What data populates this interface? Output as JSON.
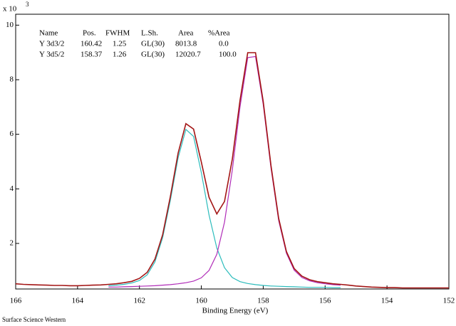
{
  "chart_data": {
    "type": "line",
    "x_label": "Binding Energy (eV)",
    "y_multiplier": "x 10",
    "y_multiplier_exp": "3",
    "footer": "Surface Science Western",
    "xlim": [
      166,
      152
    ],
    "ylim": [
      0.33,
      10.4
    ],
    "xticks": [
      166,
      164,
      162,
      160,
      158,
      156,
      154,
      152
    ],
    "yticks": [
      2,
      4,
      6,
      8,
      10
    ],
    "x": [
      166,
      165.75,
      165.5,
      165.25,
      165,
      164.75,
      164.5,
      164.25,
      164,
      163.75,
      163.5,
      163.25,
      163,
      162.75,
      162.5,
      162.25,
      162,
      161.75,
      161.5,
      161.25,
      161,
      160.75,
      160.5,
      160.25,
      160,
      159.75,
      159.5,
      159.25,
      159,
      158.75,
      158.5,
      158.25,
      158,
      157.75,
      157.5,
      157.25,
      157,
      156.75,
      156.5,
      156.25,
      156,
      155.75,
      155.5,
      155.25,
      155,
      154.75,
      154.5,
      154.25,
      154,
      153.75,
      153.5,
      153.25,
      153,
      152.75,
      152.5,
      152.25,
      152
    ],
    "series": [
      {
        "color": "#2bbcbc",
        "values": [
          null,
          null,
          null,
          null,
          null,
          null,
          null,
          null,
          null,
          null,
          null,
          null,
          0.45,
          0.47,
          0.5,
          0.55,
          0.64,
          0.85,
          1.32,
          2.21,
          3.58,
          5.14,
          6.18,
          5.92,
          4.59,
          3.04,
          1.83,
          1.11,
          0.75,
          0.6,
          0.53,
          0.49,
          0.46,
          0.44,
          0.43,
          0.42,
          0.41,
          0.4,
          0.39,
          0.39,
          0.39,
          0.38,
          0.38,
          null,
          null,
          null,
          null,
          null,
          null,
          null,
          null,
          null,
          null,
          null,
          null,
          null,
          null
        ]
      },
      {
        "color": "#b02cb8",
        "values": [
          null,
          null,
          null,
          null,
          null,
          null,
          null,
          null,
          null,
          null,
          null,
          null,
          0.4,
          0.4,
          0.41,
          0.42,
          0.43,
          0.44,
          0.45,
          0.47,
          0.49,
          0.52,
          0.56,
          0.62,
          0.74,
          1.01,
          1.6,
          2.78,
          4.68,
          7.01,
          8.81,
          8.85,
          7.1,
          4.77,
          2.84,
          1.64,
          1.02,
          0.75,
          0.63,
          0.56,
          0.52,
          0.49,
          0.47,
          null,
          null,
          null,
          null,
          null,
          null,
          null,
          null,
          null,
          null,
          null,
          null,
          null,
          null
        ]
      },
      {
        "color": "#a31515",
        "values": [
          0.52,
          0.5,
          0.49,
          0.48,
          0.47,
          0.46,
          0.46,
          0.45,
          0.45,
          0.46,
          0.47,
          0.48,
          0.5,
          0.52,
          0.56,
          0.61,
          0.72,
          0.94,
          1.42,
          2.32,
          3.72,
          5.31,
          6.39,
          6.19,
          4.98,
          3.69,
          3.08,
          3.54,
          5.08,
          7.25,
          8.99,
          8.99,
          7.21,
          4.86,
          2.92,
          1.7,
          1.08,
          0.8,
          0.67,
          0.6,
          0.56,
          0.52,
          0.5,
          0.47,
          0.44,
          0.42,
          0.4,
          0.39,
          0.38,
          0.38,
          0.37,
          0.37,
          0.37,
          0.37,
          0.37,
          0.37,
          0.37
        ]
      }
    ],
    "table": {
      "header": [
        "Name",
        "Pos.",
        "FWHM",
        "L.Sh.",
        "Area",
        "%Area"
      ],
      "rows": [
        [
          "Y 3d3/2",
          "160.42",
          "1.25",
          "GL(30)",
          "8013.8",
          "0.0"
        ],
        [
          "Y 3d5/2",
          "158.37",
          "1.26",
          "GL(30)",
          "12020.7",
          "100.0"
        ]
      ]
    }
  }
}
